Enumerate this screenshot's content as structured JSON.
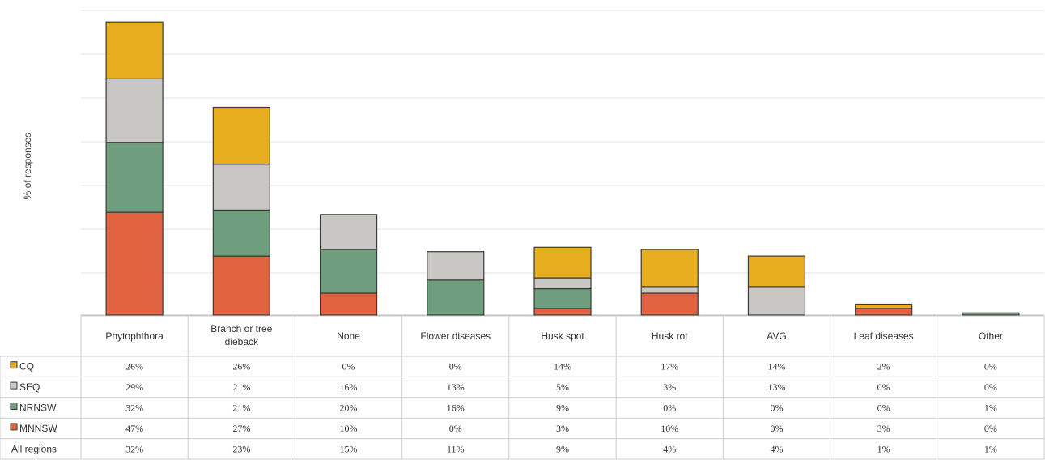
{
  "chart_data": {
    "type": "bar",
    "stacked": true,
    "ylabel": "% of responses",
    "categories": [
      "Phytophthora",
      "Branch or tree dieback",
      "None",
      "Flower diseases",
      "Husk spot",
      "Husk rot",
      "AVG",
      "Leaf diseases",
      "Other"
    ],
    "series": [
      {
        "name": "CQ",
        "color": "#e6ad1e",
        "values": [
          26,
          26,
          0,
          0,
          14,
          17,
          14,
          2,
          0
        ]
      },
      {
        "name": "SEQ",
        "color": "#c9c7c4",
        "values": [
          29,
          21,
          16,
          13,
          5,
          3,
          13,
          0,
          0
        ]
      },
      {
        "name": "NRNSW",
        "color": "#6e9e7e",
        "values": [
          32,
          21,
          20,
          16,
          9,
          0,
          0,
          0,
          1
        ]
      },
      {
        "name": "MNNSW",
        "color": "#e0623f",
        "values": [
          47,
          27,
          10,
          0,
          3,
          10,
          0,
          3,
          0
        ]
      }
    ],
    "table_rows": [
      {
        "label": "CQ",
        "swatch": "#e6ad1e",
        "cells": [
          "26%",
          "26%",
          "0%",
          "0%",
          "14%",
          "17%",
          "14%",
          "2%",
          "0%"
        ]
      },
      {
        "label": "SEQ",
        "swatch": "#c9c7c4",
        "cells": [
          "29%",
          "21%",
          "16%",
          "13%",
          "5%",
          "3%",
          "13%",
          "0%",
          "0%"
        ]
      },
      {
        "label": "NRNSW",
        "swatch": "#6e9e7e",
        "cells": [
          "32%",
          "21%",
          "20%",
          "16%",
          "9%",
          "0%",
          "0%",
          "0%",
          "1%"
        ]
      },
      {
        "label": "MNNSW",
        "swatch": "#e0623f",
        "cells": [
          "47%",
          "27%",
          "10%",
          "0%",
          "3%",
          "10%",
          "0%",
          "3%",
          "0%"
        ]
      },
      {
        "label": "All regions",
        "swatch": "",
        "cells": [
          "32%",
          "23%",
          "15%",
          "11%",
          "9%",
          "4%",
          "4%",
          "1%",
          "1%"
        ]
      }
    ],
    "gridlines": true
  }
}
